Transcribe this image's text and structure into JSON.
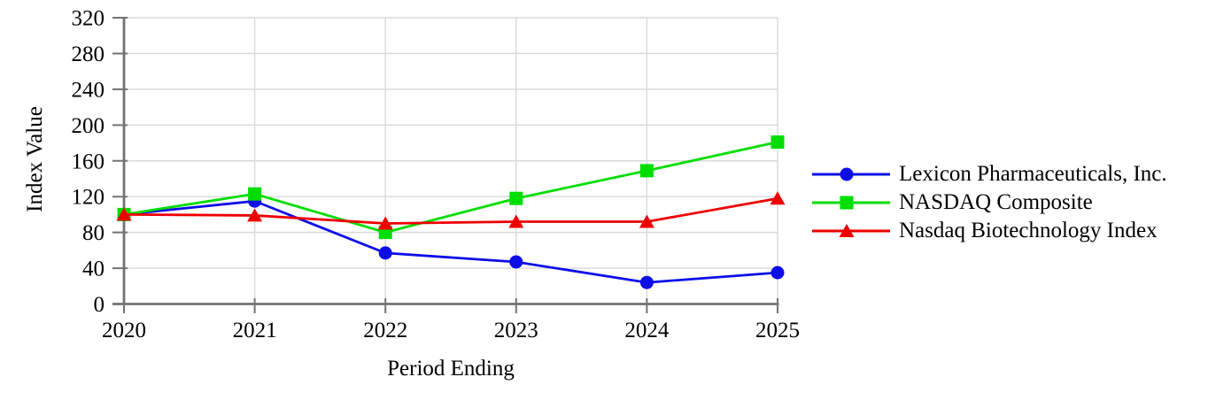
{
  "chart_data": {
    "type": "line",
    "title": "",
    "xlabel": "Period Ending",
    "ylabel": "Index Value",
    "categories": [
      "2020",
      "2021",
      "2022",
      "2023",
      "2024",
      "2025"
    ],
    "ylim": [
      0,
      320
    ],
    "yticks": [
      0,
      40,
      80,
      120,
      160,
      200,
      240,
      280,
      320
    ],
    "grid": true,
    "legend_position": "right",
    "series": [
      {
        "name": "Lexicon Pharmaceuticals, Inc.",
        "marker": "circle",
        "color": "#0d0de8",
        "values": [
          100,
          115,
          57,
          47,
          24,
          35
        ]
      },
      {
        "name": "NASDAQ Composite",
        "marker": "square",
        "color": "#00dd00",
        "values": [
          100,
          123,
          80,
          118,
          149,
          181
        ]
      },
      {
        "name": "Nasdaq Biotechnology Index",
        "marker": "triangle",
        "color": "#ee0000",
        "values": [
          100,
          99,
          90,
          92,
          92,
          118
        ]
      }
    ],
    "colors": {
      "axis": "#737373",
      "grid": "#d9d9d9",
      "text": "#000000"
    }
  }
}
